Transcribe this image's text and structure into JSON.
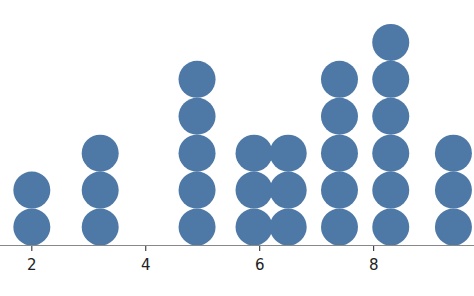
{
  "chart_data": {
    "type": "dot",
    "x": [
      2,
      3.2,
      4.9,
      5.9,
      6.5,
      7.4,
      8.3,
      9.4
    ],
    "values": [
      2,
      3,
      5,
      3,
      3,
      5,
      6,
      3
    ],
    "color": "#4e79a7",
    "xlim": [
      1.45,
      9.77
    ],
    "xticks": [
      2,
      4,
      6,
      8
    ],
    "tick_labels": "x"
  }
}
